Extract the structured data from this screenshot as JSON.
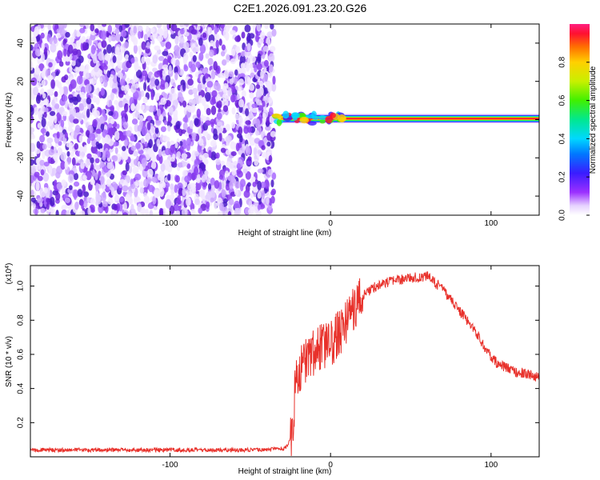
{
  "title": "C2E1.2026.091.23.20.G26",
  "colors": {
    "snr_line": "#e8312b",
    "noise_dots": "#7a2be0",
    "axis": "#000000"
  },
  "colorbar": {
    "label": "Normalized spectral amplitude",
    "ticks": [
      "0.0",
      "0.2",
      "0.4",
      "0.6",
      "0.8"
    ],
    "tick_values": [
      0.0,
      0.2,
      0.4,
      0.6,
      0.8
    ],
    "range": [
      0,
      1
    ]
  },
  "chart_data": [
    {
      "type": "heatmap",
      "xlabel": "Height of straight line (km)",
      "ylabel": "Frequency (Hz)",
      "xlim": [
        -187,
        130
      ],
      "ylim": [
        -50,
        50
      ],
      "x_ticks": [
        -100,
        0,
        100
      ],
      "x_tick_labels": [
        "-100",
        "0",
        "100"
      ],
      "y_ticks": [
        -40,
        -20,
        0,
        20,
        40
      ],
      "y_tick_labels": [
        "-40",
        "-20",
        "0",
        "20",
        "40"
      ],
      "noise_region_x": [
        -187,
        -35
      ],
      "signal_band": {
        "x_start": -35,
        "x_end": 130,
        "frequency": 0.5,
        "peak_amplitude": 1.0
      }
    },
    {
      "type": "line",
      "xlabel": "Height of straight line (km)",
      "ylabel": "SNR (10 * v/v)",
      "y_multiplier": "(x10",
      "y_multiplier_exp": "4",
      "y_multiplier_close": ")",
      "xlim": [
        -187,
        130
      ],
      "ylim": [
        0,
        1.12
      ],
      "x_ticks": [
        -100,
        0,
        100
      ],
      "x_tick_labels": [
        "-100",
        "0",
        "100"
      ],
      "y_ticks": [
        0.2,
        0.4,
        0.6,
        0.8,
        1.0
      ],
      "y_tick_labels": [
        "0.2",
        "0.4",
        "0.6",
        "0.8",
        "1.0"
      ],
      "series": [
        {
          "x": [
            -187,
            -160,
            -130,
            -100,
            -70,
            -40,
            -28,
            -24,
            -22,
            -20,
            -15,
            -10,
            -5,
            0,
            5,
            10,
            15,
            20,
            25,
            30,
            35,
            40,
            45,
            50,
            55,
            60,
            65,
            70,
            75,
            80,
            85,
            90,
            95,
            100,
            105,
            110,
            115,
            120,
            125,
            130
          ],
          "values": [
            0.04,
            0.04,
            0.04,
            0.04,
            0.04,
            0.04,
            0.05,
            0.12,
            0.4,
            0.48,
            0.58,
            0.62,
            0.64,
            0.66,
            0.72,
            0.8,
            0.88,
            0.94,
            0.98,
            1.01,
            1.02,
            1.03,
            1.04,
            1.05,
            1.05,
            1.06,
            1.02,
            0.98,
            0.92,
            0.86,
            0.8,
            0.74,
            0.66,
            0.58,
            0.54,
            0.52,
            0.5,
            0.49,
            0.48,
            0.46
          ]
        }
      ]
    }
  ]
}
